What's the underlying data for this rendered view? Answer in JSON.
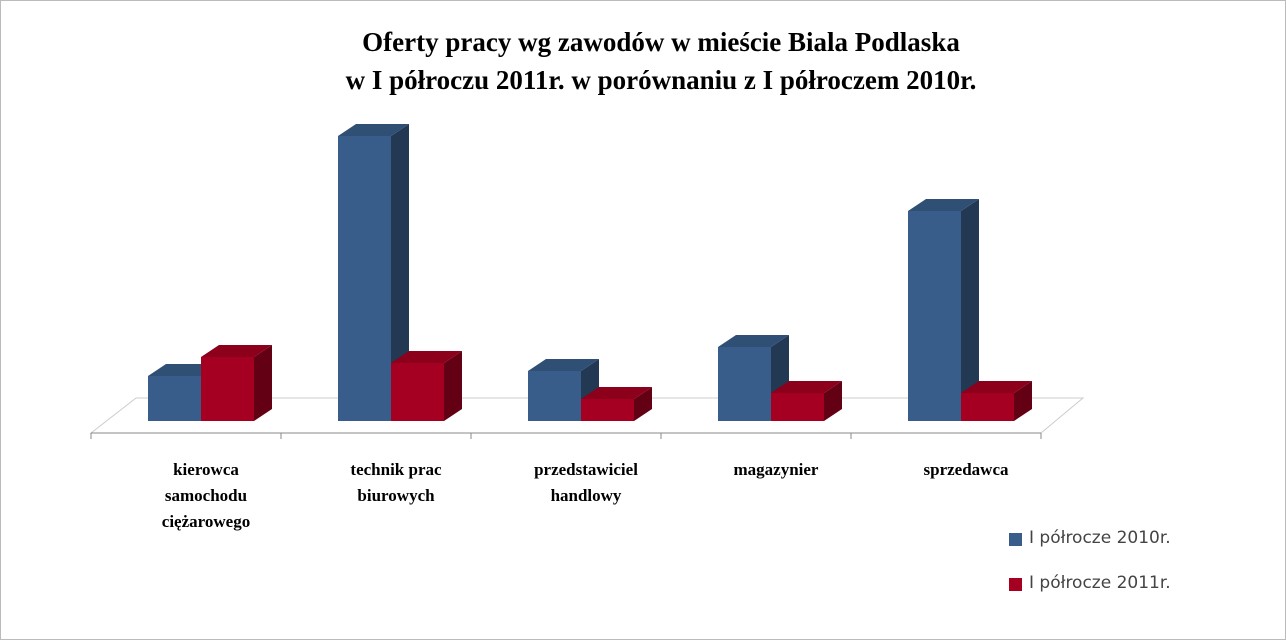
{
  "chart_data": {
    "type": "bar3d",
    "title": "Oferty pracy wg zawodów w mieście Biala Podlaska\nw I półroczu 2011r. w porównaniu z I półroczem 2010r.",
    "categories": [
      "kierowca samochodu ciężarowego",
      "technik prac biurowych",
      "przedstawiciel handlowy",
      "magazynier",
      "sprzedawca"
    ],
    "series": [
      {
        "name": "I półrocze 2010r.",
        "color": "#385d8a",
        "values": [
          45,
          285,
          50,
          74,
          210
        ]
      },
      {
        "name": "I półrocze 2011r.",
        "color": "#a50021",
        "values": [
          64,
          58,
          22,
          28,
          28
        ]
      }
    ],
    "legend": "right"
  }
}
